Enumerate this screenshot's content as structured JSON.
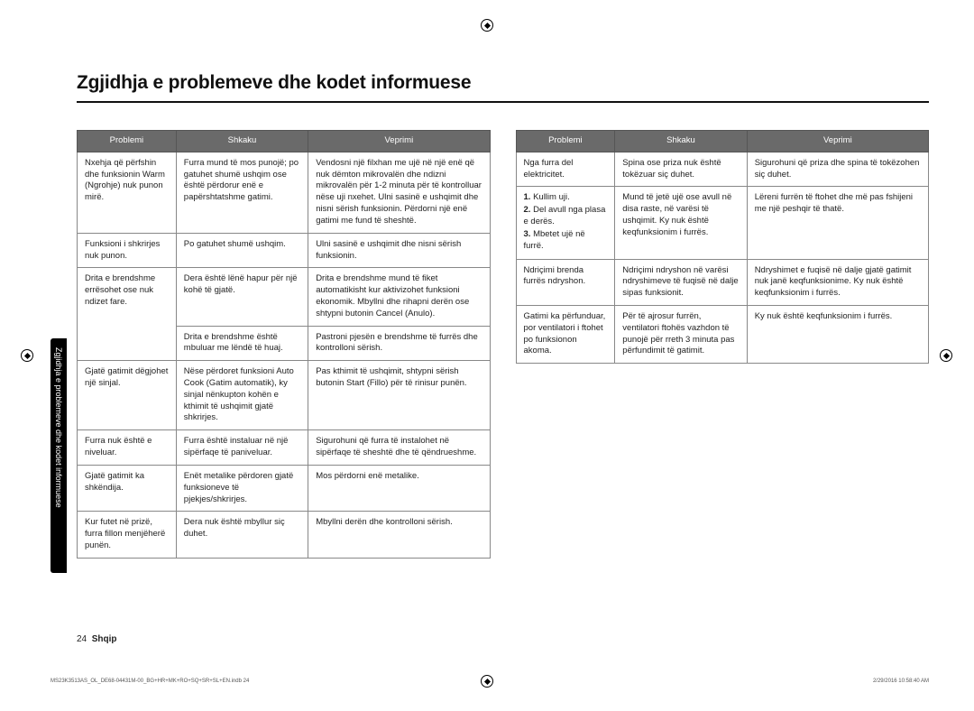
{
  "title": "Zgjidhja e problemeve dhe kodet informuese",
  "sideTab": "Zgjidhja e problemeve dhe kodet informuese",
  "headers": {
    "c1": "Problemi",
    "c2": "Shkaku",
    "c3": "Veprimi"
  },
  "left": [
    {
      "p": "Nxehja që përfshin dhe funksionin Warm (Ngrohje) nuk punon mirë.",
      "s": "Furra mund të mos punojë; po gatuhet shumë ushqim ose është përdorur enë e papërshtatshme gatimi.",
      "v": "Vendosni një filxhan me ujë në një enë që nuk dëmton mikrovalën dhe ndizni mikrovalën për 1-2 minuta për të kontrolluar nëse uji nxehet. Ulni sasinë e ushqimit dhe nisni sërish funksionin. Përdorni një enë gatimi me fund të sheshtë."
    },
    {
      "p": "Funksioni i shkrirjes nuk punon.",
      "s": "Po gatuhet shumë ushqim.",
      "v": "Ulni sasinë e ushqimit dhe nisni sërish funksionin."
    },
    {
      "p": "Drita e brendshme errësohet ose nuk ndizet fare.",
      "s": "Dera është lënë hapur për një kohë të gjatë.",
      "v": "Drita e brendshme mund të fiket automatikisht kur aktivizohet funksioni ekonomik. Mbyllni dhe rihapni derën ose shtypni butonin Cancel (Anulo).",
      "rowspan": 2
    },
    {
      "p": "",
      "s": "Drita e brendshme është mbuluar me lëndë të huaj.",
      "v": "Pastroni pjesën e brendshme të furrës dhe kontrolloni sërish."
    },
    {
      "p": "Gjatë gatimit dëgjohet një sinjal.",
      "s": "Nëse përdoret funksioni Auto Cook (Gatim automatik), ky sinjal nënkupton kohën e kthimit të ushqimit gjatë shkrirjes.",
      "v": "Pas kthimit të ushqimit, shtypni sërish butonin Start (Fillo) për të rinisur punën."
    },
    {
      "p": "Furra nuk është e niveluar.",
      "s": "Furra është instaluar në një sipërfaqe të paniveluar.",
      "v": "Sigurohuni që furra të instalohet në sipërfaqe të sheshtë dhe të qëndrueshme."
    },
    {
      "p": "Gjatë gatimit ka shkëndija.",
      "s": "Enët metalike përdoren gjatë funksioneve të pjekjes/shkrirjes.",
      "v": "Mos përdorni enë metalike."
    },
    {
      "p": "Kur futet në prizë, furra fillon menjëherë punën.",
      "s": "Dera nuk është mbyllur siç duhet.",
      "v": "Mbyllni derën dhe kontrolloni sërish."
    }
  ],
  "right": [
    {
      "p": "Nga furra del elektricitet.",
      "s": "Spina ose priza nuk është tokëzuar siç duhet.",
      "v": "Sigurohuni që priza dhe spina të tokëzohen siç duhet."
    },
    {
      "type": "list",
      "items": [
        "Kullim uji.",
        "Del avull nga plasa e derës.",
        "Mbetet ujë në furrë."
      ],
      "s": "Mund të jetë ujë ose avull në disa raste, në varësi të ushqimit. Ky nuk është keqfunksionim i furrës.",
      "v": "Lëreni furrën të ftohet dhe më pas fshijeni me një peshqir të thatë."
    },
    {
      "p": "Ndriçimi brenda furrës ndryshon.",
      "s": "Ndriçimi ndryshon në varësi ndryshimeve të fuqisë në dalje sipas funksionit.",
      "v": "Ndryshimet e fuqisë në dalje gjatë gatimit nuk janë keqfunksionime. Ky nuk është keqfunksionim i furrës."
    },
    {
      "p": "Gatimi ka përfunduar, por ventilatori i ftohet po funksionon akoma.",
      "s": "Për të ajrosur furrën, ventilatori ftohës vazhdon të punojë për rreth 3 minuta pas përfundimit të gatimit.",
      "v": "Ky nuk është keqfunksionim i furrës."
    }
  ],
  "pageNum": "24",
  "pageLang": "Shqip",
  "footerLeft": "MS23K3513AS_OL_DE68-04431M-00_BG+HR+MK+RO+SQ+SR+SL+EN.indb   24",
  "footerRight": "2/29/2016   10:58:40 AM"
}
